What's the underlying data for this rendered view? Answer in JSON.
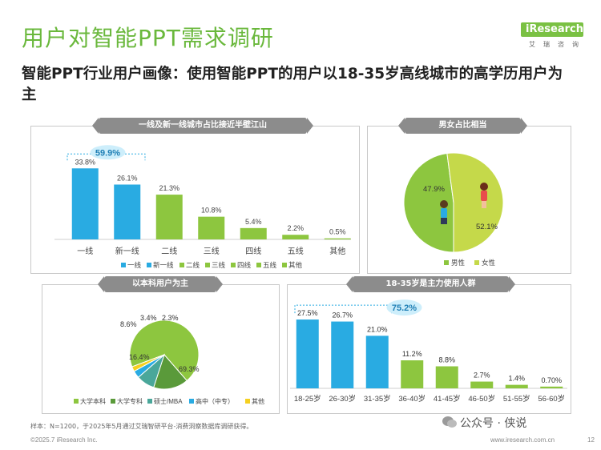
{
  "title": "用户对智能PPT需求调研",
  "subtitle": "智能PPT行业用户画像：使用智能PPT的用户以18-35岁高线城市的高学历用户为主",
  "logo": {
    "brand": "iResearch",
    "sub": "艾瑞咨询"
  },
  "panels": {
    "city": "一线及新一线城市占比接近半壁江山",
    "gender": "男女占比相当",
    "edu": "以本科用户为主",
    "age": "18-35岁是主力使用人群"
  },
  "footer": {
    "note": "样本：N=1200，于2025年5月通过艾瑞智研平台-消费洞察数据库调研获得。",
    "copyright": "©2025.7 iResearch Inc.",
    "url": "www.iresearch.com.cn",
    "page": "12",
    "watermark": "公众号 · 侠说"
  },
  "colors": {
    "blue": "#29abe2",
    "green": "#8dc63f",
    "lightgreen": "#c5d94a",
    "olive": "#5a9a3a",
    "yellow": "#f5d020",
    "teal": "#4aa79a"
  },
  "chart_data": [
    {
      "type": "bar",
      "categories": [
        "一线",
        "新一线",
        "二线",
        "三线",
        "四线",
        "五线",
        "其他"
      ],
      "values": [
        33.8,
        26.1,
        21.3,
        10.8,
        5.4,
        2.2,
        0.5
      ],
      "value_labels": [
        "33.8%",
        "26.1%",
        "21.3%",
        "10.8%",
        "5.4%",
        "2.2%",
        "0.5%"
      ],
      "colors": [
        "#29abe2",
        "#29abe2",
        "#8dc63f",
        "#8dc63f",
        "#8dc63f",
        "#8dc63f",
        "#8dc63f"
      ],
      "legend": [
        "一线",
        "新一线",
        "二线",
        "三线",
        "四线",
        "五线",
        "其他"
      ],
      "annotation": "59.9%",
      "ylim": [
        0,
        40
      ]
    },
    {
      "type": "pie",
      "labels": [
        "男性",
        "女性"
      ],
      "values": [
        47.9,
        52.1
      ],
      "value_labels": [
        "47.9%",
        "52.1%"
      ],
      "colors": [
        "#8dc63f",
        "#c5d94a"
      ]
    },
    {
      "type": "pie",
      "labels": [
        "大学本科",
        "大学专科",
        "硕士/MBA",
        "高中（中专）",
        "其他"
      ],
      "values": [
        69.3,
        16.4,
        8.6,
        3.4,
        2.3
      ],
      "value_labels": [
        "69.3%",
        "16.4%",
        "8.6%",
        "3.4%",
        "2.3%"
      ],
      "colors": [
        "#8dc63f",
        "#5a9a3a",
        "#4aa79a",
        "#29abe2",
        "#f5d020"
      ]
    },
    {
      "type": "bar",
      "categories": [
        "18-25岁",
        "26-30岁",
        "31-35岁",
        "36-40岁",
        "41-45岁",
        "46-50岁",
        "51-55岁",
        "56-60岁"
      ],
      "values": [
        27.5,
        26.7,
        21.0,
        11.2,
        8.8,
        2.7,
        1.4,
        0.7
      ],
      "value_labels": [
        "27.5%",
        "26.7%",
        "21.0%",
        "11.2%",
        "8.8%",
        "2.7%",
        "1.4%",
        "0.70%"
      ],
      "colors": [
        "#29abe2",
        "#29abe2",
        "#29abe2",
        "#8dc63f",
        "#8dc63f",
        "#8dc63f",
        "#8dc63f",
        "#8dc63f"
      ],
      "annotation": "75.2%",
      "ylim": [
        0,
        32
      ]
    }
  ]
}
